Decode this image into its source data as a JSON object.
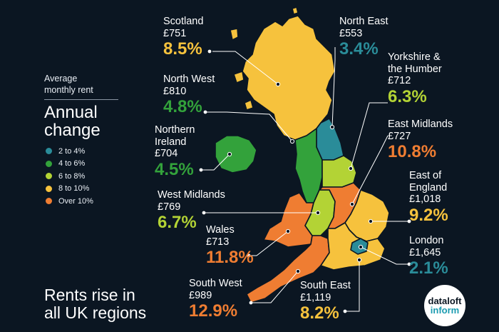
{
  "legend": {
    "subtitle_line1": "Average",
    "subtitle_line2": "monthly rent",
    "title_line1": "Annual",
    "title_line2": "change",
    "items": [
      {
        "label": "2 to 4%",
        "color": "#2a8c99"
      },
      {
        "label": "4 to 6%",
        "color": "#33a23b"
      },
      {
        "label": "6 to 8%",
        "color": "#b3d335"
      },
      {
        "label": "8 to 10%",
        "color": "#f6c23d"
      },
      {
        "label": "Over 10%",
        "color": "#ef7d32"
      }
    ]
  },
  "regions": {
    "scotland": {
      "name": "Scotland",
      "rent": "£751",
      "change": "8.5%",
      "color": "#f6c23d"
    },
    "north_west": {
      "name": "North West",
      "rent": "£810",
      "change": "4.8%",
      "color": "#33a23b"
    },
    "northern_ireland": {
      "name_line1": "Northern",
      "name_line2": "Ireland",
      "rent": "£704",
      "change": "4.5%",
      "color": "#33a23b"
    },
    "west_midlands": {
      "name": "West Midlands",
      "rent": "£769",
      "change": "6.7%",
      "color": "#b3d335"
    },
    "wales": {
      "name": "Wales",
      "rent": "£713",
      "change": "11.8%",
      "color": "#ef7d32"
    },
    "south_west": {
      "name": "South West",
      "rent": "£989",
      "change": "12.9%",
      "color": "#ef7d32"
    },
    "north_east": {
      "name": "North East",
      "rent": "£553",
      "change": "3.4%",
      "color": "#2a8c99"
    },
    "yorkshire": {
      "name_line1": "Yorkshire &",
      "name_line2": "the Humber",
      "rent": "£712",
      "change": "6.3%",
      "color": "#b3d335"
    },
    "east_midlands": {
      "name": "East Midlands",
      "rent": "£727",
      "change": "10.8%",
      "color": "#ef7d32"
    },
    "east_of_england": {
      "name_line1": "East of",
      "name_line2": "England",
      "rent": "£1,018",
      "change": "9.2%",
      "color": "#f6c23d"
    },
    "london": {
      "name": "London",
      "rent": "£1,645",
      "change": "2.1%",
      "color": "#2a8c99"
    },
    "south_east": {
      "name": "South East",
      "rent": "£1,119",
      "change": "8.2%",
      "color": "#f6c23d"
    }
  },
  "headline_line1": "Rents rise in",
  "headline_line2": "all UK regions",
  "logo": {
    "line1": "dataloft",
    "line2": "inform"
  }
}
